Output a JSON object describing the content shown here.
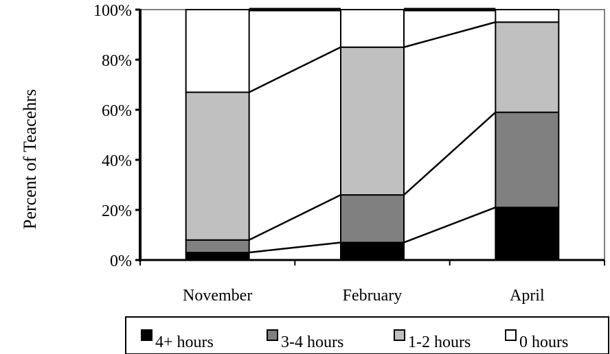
{
  "chart_data": {
    "type": "bar",
    "stacked": true,
    "percent_stacked": true,
    "series_lines": true,
    "categories": [
      "November",
      "February",
      "April"
    ],
    "series": [
      {
        "name": "4+ hours",
        "values": [
          3,
          7,
          21
        ],
        "color": "#000000"
      },
      {
        "name": "3-4 hours",
        "values": [
          5,
          19,
          38
        ],
        "color": "#808080"
      },
      {
        "name": "1-2 hours",
        "values": [
          59,
          59,
          36
        ],
        "color": "#c0c0c0"
      },
      {
        "name": "0 hours",
        "values": [
          33,
          15,
          5
        ],
        "color": "#ffffff"
      }
    ],
    "title": "",
    "xlabel": "",
    "ylabel": "Percent of Teacehrs",
    "ylim": [
      0,
      100
    ],
    "yticks": [
      "0%",
      "20%",
      "40%",
      "60%",
      "80%",
      "100%"
    ],
    "grid": false,
    "legend_position": "bottom"
  }
}
